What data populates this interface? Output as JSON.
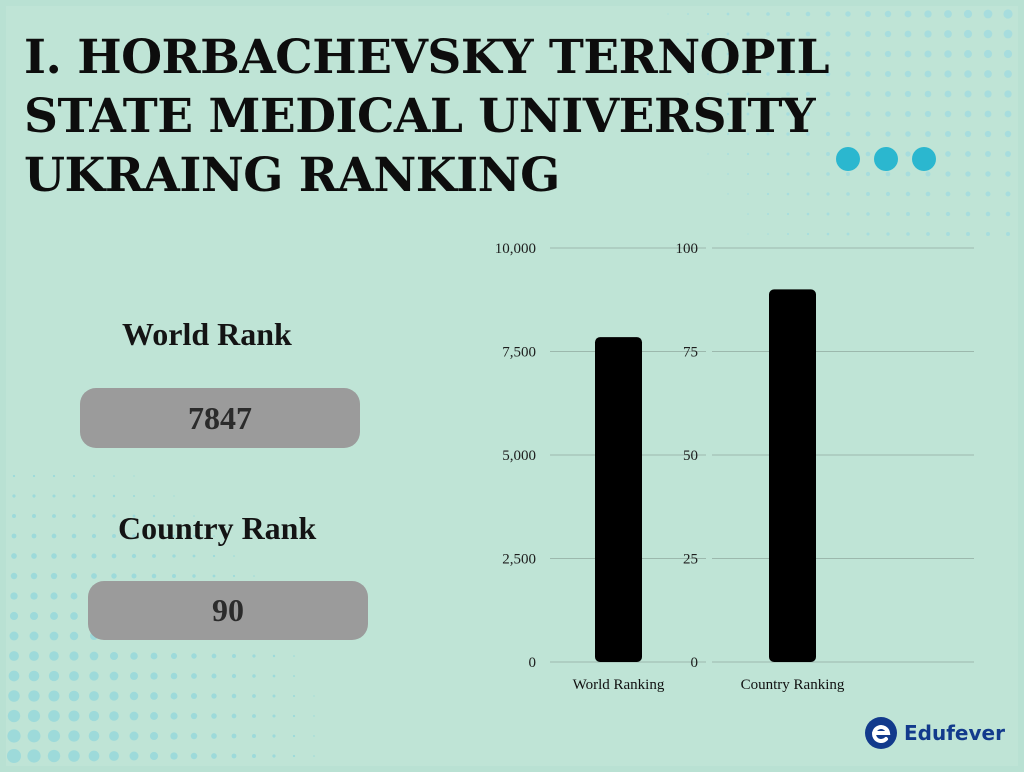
{
  "title_lines": [
    "I. HORBACHEVSKY TERNOPIL",
    "STATE MEDICAL UNIVERSITY",
    "UKRAING RANKING"
  ],
  "world_rank": {
    "label": "World Rank",
    "value": "7847"
  },
  "country_rank": {
    "label": "Country Rank",
    "value": "90"
  },
  "brand": {
    "name": "Edufever"
  },
  "colors": {
    "background": "#bfe4d6",
    "bar": "#000000",
    "pill": "#9b9b9b",
    "accent_dots": "#2bb7cf"
  },
  "chart_data": [
    {
      "type": "bar",
      "categories": [
        "World Ranking"
      ],
      "values": [
        7847
      ],
      "ylim": [
        0,
        10000
      ],
      "yticks": [
        "0",
        "2,500",
        "5,000",
        "7,500",
        "10,000"
      ],
      "grid": true
    },
    {
      "type": "bar",
      "categories": [
        "Country Ranking"
      ],
      "values": [
        90
      ],
      "ylim": [
        0,
        100
      ],
      "yticks": [
        "0",
        "25",
        "50",
        "75",
        "100"
      ],
      "grid": true
    }
  ]
}
